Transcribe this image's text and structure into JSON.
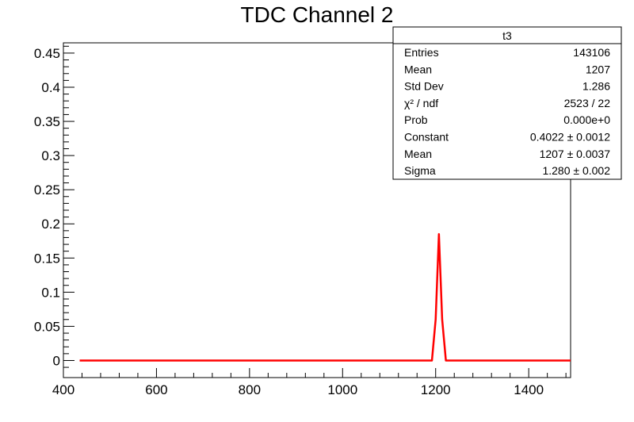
{
  "chart_data": {
    "type": "line",
    "title": "TDC Channel 2",
    "xlabel": "",
    "ylabel": "",
    "xlim": [
      400,
      1490
    ],
    "ylim": [
      -0.025,
      0.465
    ],
    "x_ticks": [
      400,
      600,
      800,
      1000,
      1200,
      1400
    ],
    "x_tick_labels": [
      "400",
      "600",
      "800",
      "1000",
      "1200",
      "1400"
    ],
    "y_ticks": [
      0,
      0.05,
      0.1,
      0.15,
      0.2,
      0.25,
      0.3,
      0.35,
      0.4,
      0.45
    ],
    "y_tick_labels": [
      "0",
      "0.05",
      "0.1",
      "0.15",
      "0.2",
      "0.25",
      "0.3",
      "0.35",
      "0.4",
      "0.45"
    ],
    "grid": false,
    "series": [
      {
        "name": "",
        "color": "#ff0000",
        "x": [
          435,
          1192,
          1200,
          1207,
          1214,
          1222,
          1490
        ],
        "y": [
          0,
          0,
          0.06,
          0.185,
          0.06,
          0,
          0
        ]
      }
    ],
    "stats_box": {
      "title": "t3",
      "rows": [
        {
          "label": "Entries",
          "value": "143106"
        },
        {
          "label": "Mean",
          "value": "1207"
        },
        {
          "label": "Std Dev",
          "value": "1.286"
        },
        {
          "label": "χ² / ndf",
          "value": "2523 / 22"
        },
        {
          "label": "Prob",
          "value": "0.000e+0"
        },
        {
          "label": "Constant",
          "value": "0.4022 ± 0.0012"
        },
        {
          "label": "Mean",
          "value": "1207 ± 0.0037"
        },
        {
          "label": "Sigma",
          "value": "1.280 ± 0.002"
        }
      ]
    }
  }
}
